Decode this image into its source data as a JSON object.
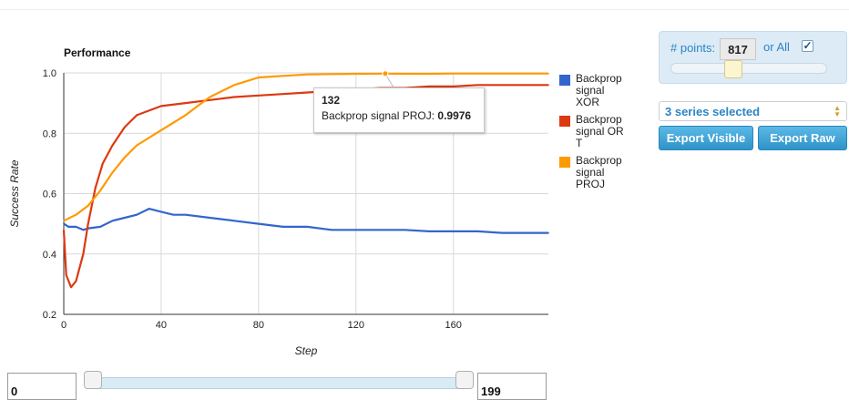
{
  "chart_data": {
    "type": "line",
    "title": "Performance",
    "xlabel": "Step",
    "ylabel": "Success Rate",
    "xlim": [
      0,
      199
    ],
    "ylim": [
      0.2,
      1.0
    ],
    "x_ticks": [
      "0",
      "40",
      "80",
      "120",
      "160"
    ],
    "y_ticks": [
      "0.2",
      "0.4",
      "0.6",
      "0.8",
      "1.0"
    ],
    "grid": true,
    "legend_position": "right",
    "series": [
      {
        "name": "Backprop signal XOR",
        "color": "#3366cc",
        "x": [
          0,
          2,
          5,
          8,
          10,
          15,
          20,
          25,
          30,
          35,
          40,
          45,
          50,
          60,
          70,
          80,
          90,
          100,
          110,
          120,
          130,
          140,
          150,
          160,
          170,
          180,
          190,
          199
        ],
        "y": [
          0.5,
          0.49,
          0.49,
          0.48,
          0.485,
          0.49,
          0.51,
          0.52,
          0.53,
          0.55,
          0.54,
          0.53,
          0.53,
          0.52,
          0.51,
          0.5,
          0.49,
          0.49,
          0.48,
          0.48,
          0.48,
          0.48,
          0.475,
          0.475,
          0.475,
          0.47,
          0.47,
          0.47
        ]
      },
      {
        "name": "Backprop signal OR T",
        "color": "#dc3912",
        "x": [
          0,
          1,
          3,
          5,
          8,
          10,
          13,
          16,
          20,
          25,
          30,
          40,
          50,
          60,
          70,
          80,
          90,
          100,
          110,
          120,
          130,
          140,
          150,
          160,
          170,
          180,
          190,
          199
        ],
        "y": [
          0.48,
          0.33,
          0.29,
          0.31,
          0.4,
          0.5,
          0.62,
          0.7,
          0.76,
          0.82,
          0.86,
          0.89,
          0.9,
          0.91,
          0.92,
          0.925,
          0.93,
          0.935,
          0.94,
          0.945,
          0.95,
          0.95,
          0.955,
          0.955,
          0.96,
          0.96,
          0.96,
          0.96
        ]
      },
      {
        "name": "Backprop signal PROJ",
        "color": "#ff9900",
        "x": [
          0,
          5,
          10,
          15,
          20,
          25,
          30,
          40,
          50,
          55,
          60,
          65,
          70,
          80,
          90,
          100,
          110,
          120,
          132,
          140,
          150,
          160,
          170,
          180,
          190,
          199
        ],
        "y": [
          0.51,
          0.53,
          0.56,
          0.61,
          0.67,
          0.72,
          0.76,
          0.81,
          0.86,
          0.89,
          0.92,
          0.94,
          0.96,
          0.985,
          0.99,
          0.995,
          0.996,
          0.997,
          0.9976,
          0.997,
          0.997,
          0.998,
          0.998,
          0.998,
          0.998,
          0.998
        ]
      }
    ]
  },
  "legend": {
    "items": [
      {
        "label": "Backprop signal XOR",
        "color": "#3366cc"
      },
      {
        "label": "Backprop signal OR T",
        "color": "#dc3912"
      },
      {
        "label": "Backprop signal PROJ",
        "color": "#ff9900"
      }
    ]
  },
  "tooltip": {
    "step": "132",
    "series_label": "Backprop signal PROJ: ",
    "value": "0.9976"
  },
  "controls": {
    "points_label": "# points:",
    "points_value": "817",
    "or_all_label": "or All",
    "all_checked": true,
    "checkbox_glyph": "✓",
    "series_select": "3 series selected",
    "export_visible": "Export Visible",
    "export_raw": "Export Raw"
  },
  "range": {
    "min": "0",
    "max": "199"
  }
}
